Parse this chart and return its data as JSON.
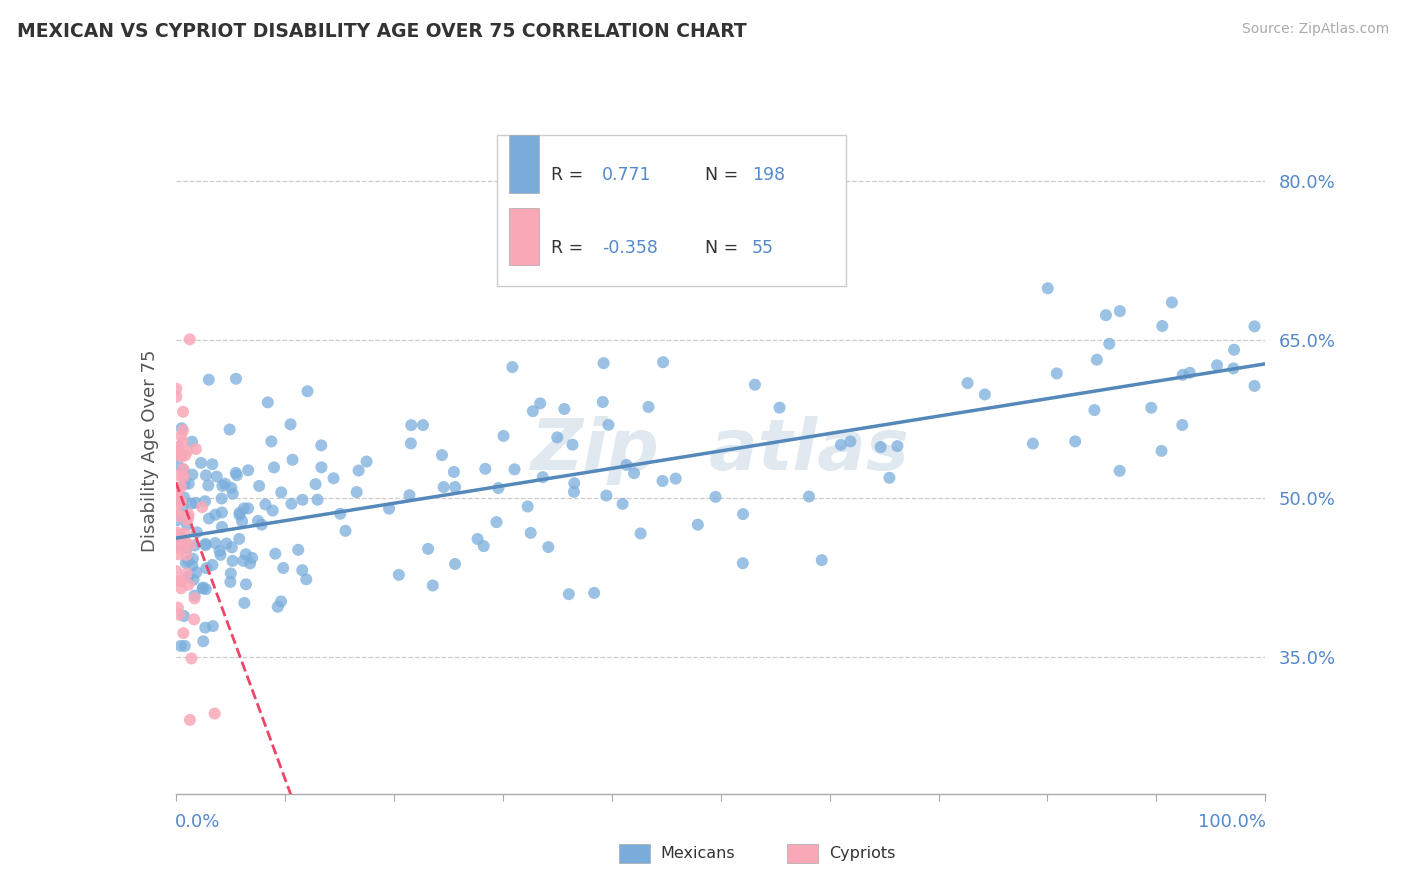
{
  "title": "MEXICAN VS CYPRIOT DISABILITY AGE OVER 75 CORRELATION CHART",
  "source": "Source: ZipAtlas.com",
  "ylabel": "Disability Age Over 75",
  "xlim": [
    0.0,
    1.0
  ],
  "ylim": [
    0.22,
    0.87
  ],
  "yticks": [
    0.35,
    0.5,
    0.65,
    0.8
  ],
  "ytick_labels": [
    "35.0%",
    "50.0%",
    "65.0%",
    "80.0%"
  ],
  "blue_color": "#7aaddc",
  "pink_color": "#f9a8b8",
  "blue_line_color": "#5588bb",
  "pink_line_color": "#ee4466",
  "bottom_legend_blue": "Mexicans",
  "bottom_legend_pink": "Cypriots",
  "title_color": "#333333",
  "source_color": "#aaaaaa",
  "axis_label_color": "#555555",
  "tick_color": "#5588cc",
  "grid_color": "#cccccc",
  "blue_n": 198,
  "pink_n": 55,
  "blue_slope": 0.165,
  "blue_intercept": 0.462,
  "pink_slope": -2.8,
  "pink_intercept": 0.515,
  "background_color": "#ffffff"
}
